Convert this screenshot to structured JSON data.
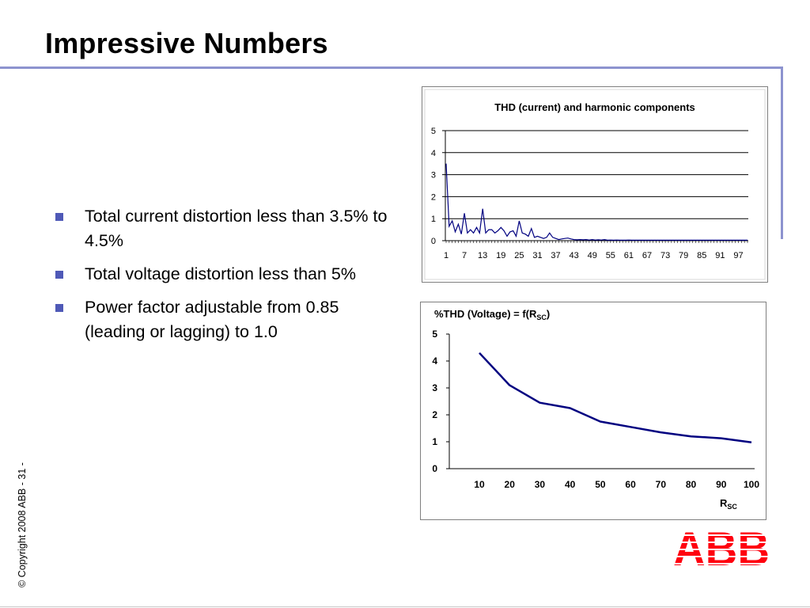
{
  "slide": {
    "title": "Impressive Numbers",
    "bullets": [
      "Total current distortion less than 3.5% to 4.5%",
      "Total voltage distortion less than 5%",
      "Power factor adjustable from 0.85 (leading or lagging) to 1.0"
    ],
    "copyright": "© Copyright 2008 ABB - 31 -",
    "logo_text": "ABB",
    "colors": {
      "accent": "#8d93cf",
      "bullet": "#4f59b7",
      "series": "#000080",
      "logo": "#ff000f"
    }
  },
  "chart_data": [
    {
      "type": "line",
      "title": "THD (current) and harmonic components",
      "xlabel": "",
      "ylabel": "",
      "x_tick_labels": [
        "1",
        "7",
        "13",
        "19",
        "25",
        "31",
        "37",
        "43",
        "49",
        "55",
        "61",
        "67",
        "73",
        "79",
        "85",
        "91",
        "97"
      ],
      "ylim": [
        0,
        5
      ],
      "yticks": [
        0,
        1,
        2,
        3,
        4,
        5
      ],
      "grid": true,
      "series": [
        {
          "name": "",
          "x": [
            1,
            2,
            3,
            4,
            5,
            6,
            7,
            8,
            9,
            10,
            11,
            12,
            13,
            14,
            15,
            16,
            17,
            18,
            19,
            20,
            21,
            22,
            23,
            24,
            25,
            26,
            27,
            28,
            29,
            30,
            31,
            32,
            33,
            34,
            35,
            36,
            37,
            38,
            39,
            40,
            41,
            42,
            43,
            44,
            45,
            46,
            47,
            48,
            49,
            50,
            51,
            52,
            53,
            54,
            55,
            56,
            57,
            58,
            59,
            60,
            61,
            62,
            63,
            64,
            65,
            66,
            67,
            68,
            69,
            70,
            71,
            72,
            73,
            74,
            75,
            76,
            77,
            78,
            79,
            80,
            81,
            82,
            83,
            84,
            85,
            86,
            87,
            88,
            89,
            90,
            91,
            92,
            93,
            94,
            95,
            96,
            97,
            98,
            99,
            100
          ],
          "values": [
            3.5,
            0.65,
            0.9,
            0.4,
            0.75,
            0.3,
            1.25,
            0.35,
            0.5,
            0.35,
            0.6,
            0.35,
            1.45,
            0.35,
            0.5,
            0.5,
            0.35,
            0.45,
            0.6,
            0.45,
            0.2,
            0.4,
            0.45,
            0.2,
            0.9,
            0.35,
            0.3,
            0.2,
            0.55,
            0.15,
            0.2,
            0.15,
            0.1,
            0.15,
            0.35,
            0.15,
            0.1,
            0.05,
            0.08,
            0.1,
            0.12,
            0.08,
            0.05,
            0.04,
            0.05,
            0.04,
            0.05,
            0.03,
            0.05,
            0.03,
            0.04,
            0.03,
            0.05,
            0.02,
            0.03,
            0.02,
            0.03,
            0.02,
            0.02,
            0.02,
            0.03,
            0.02,
            0.02,
            0.02,
            0.02,
            0.02,
            0.02,
            0.02,
            0.02,
            0.02,
            0.02,
            0.02,
            0.02,
            0.02,
            0.02,
            0.02,
            0.02,
            0.02,
            0.02,
            0.02,
            0.02,
            0.02,
            0.02,
            0.02,
            0.02,
            0.02,
            0.02,
            0.02,
            0.02,
            0.02,
            0.02,
            0.02,
            0.02,
            0.02,
            0.02,
            0.02,
            0.02,
            0.02,
            0.02,
            0.02
          ]
        }
      ]
    },
    {
      "type": "line",
      "title": "%THD (Voltage) = f(R",
      "title_sub": "SC",
      "title_end": ")",
      "xlabel": "R",
      "xlabel_sub": "SC",
      "ylabel": "",
      "categories": [
        "10",
        "20",
        "30",
        "40",
        "50",
        "60",
        "70",
        "80",
        "90",
        "100"
      ],
      "ylim": [
        0,
        5
      ],
      "yticks": [
        0,
        1,
        2,
        3,
        4,
        5
      ],
      "grid": false,
      "series": [
        {
          "name": "",
          "values": [
            4.3,
            3.1,
            2.45,
            2.25,
            1.75,
            1.55,
            1.35,
            1.2,
            1.13,
            0.98
          ]
        }
      ]
    }
  ]
}
